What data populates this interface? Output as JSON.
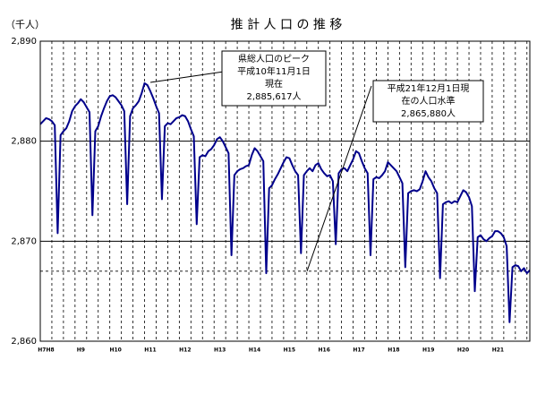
{
  "chart_data": {
    "type": "line",
    "title": "推 計 人 口 の 推 移",
    "y_unit": "（千人）",
    "categories": [
      null,
      null,
      "H7H8",
      null,
      null,
      null,
      null,
      null,
      null,
      null,
      null,
      null,
      null,
      null,
      "H9",
      null,
      null,
      null,
      null,
      null,
      null,
      null,
      null,
      null,
      null,
      null,
      "H10",
      null,
      null,
      null,
      null,
      null,
      null,
      null,
      null,
      null,
      null,
      null,
      "H11",
      null,
      null,
      null,
      null,
      null,
      null,
      null,
      null,
      null,
      null,
      null,
      "H12",
      null,
      null,
      null,
      null,
      null,
      null,
      null,
      null,
      null,
      null,
      null,
      "H13",
      null,
      null,
      null,
      null,
      null,
      null,
      null,
      null,
      null,
      null,
      null,
      "H14",
      null,
      null,
      null,
      null,
      null,
      null,
      null,
      null,
      null,
      null,
      null,
      "H15",
      null,
      null,
      null,
      null,
      null,
      null,
      null,
      null,
      null,
      null,
      null,
      "H16",
      null,
      null,
      null,
      null,
      null,
      null,
      null,
      null,
      null,
      null,
      null,
      "H17",
      null,
      null,
      null,
      null,
      null,
      null,
      null,
      null,
      null,
      null,
      null,
      "H18",
      null,
      null,
      null,
      null,
      null,
      null,
      null,
      null,
      null,
      null,
      null,
      "H19",
      null,
      null,
      null,
      null,
      null,
      null,
      null,
      null,
      null,
      null,
      null,
      "H20",
      null,
      null,
      null,
      null,
      null,
      null,
      null,
      null,
      null,
      null,
      null,
      "H21",
      null,
      null,
      null,
      null,
      null,
      null,
      null,
      null,
      null,
      null,
      null
    ],
    "series": [
      {
        "name": "推計人口",
        "color": "#00008b",
        "values": [
          2881.7,
          2882.0,
          2882.3,
          2882.2,
          2882.0,
          2881.6,
          2870.8,
          2880.6,
          2881.0,
          2881.3,
          2882.0,
          2883.0,
          2883.5,
          2883.8,
          2884.2,
          2883.9,
          2883.4,
          2882.9,
          2872.6,
          2881.0,
          2881.5,
          2882.5,
          2883.3,
          2884.0,
          2884.5,
          2884.6,
          2884.4,
          2884.0,
          2883.6,
          2883.0,
          2873.7,
          2882.5,
          2883.3,
          2883.6,
          2884.0,
          2884.8,
          2885.8,
          2885.6,
          2885.0,
          2884.3,
          2883.5,
          2882.8,
          2874.2,
          2881.5,
          2881.8,
          2881.7,
          2882.0,
          2882.3,
          2882.4,
          2882.6,
          2882.5,
          2882.0,
          2881.2,
          2880.5,
          2871.7,
          2878.4,
          2878.6,
          2878.5,
          2879.0,
          2879.2,
          2879.6,
          2880.2,
          2880.4,
          2880.0,
          2879.4,
          2878.8,
          2868.6,
          2876.6,
          2877.0,
          2877.2,
          2877.3,
          2877.5,
          2877.6,
          2878.6,
          2879.3,
          2879.0,
          2878.5,
          2878.0,
          2866.8,
          2875.3,
          2875.6,
          2876.2,
          2876.7,
          2877.3,
          2877.9,
          2878.4,
          2878.3,
          2877.6,
          2877.0,
          2876.6,
          2868.8,
          2876.6,
          2877.0,
          2877.3,
          2877.0,
          2877.6,
          2877.8,
          2877.2,
          2876.8,
          2876.5,
          2876.6,
          2876.0,
          2869.7,
          2876.8,
          2877.2,
          2877.3,
          2877.0,
          2877.6,
          2878.2,
          2879.0,
          2878.8,
          2878.0,
          2877.3,
          2876.8,
          2868.6,
          2876.2,
          2876.4,
          2876.3,
          2876.6,
          2877.0,
          2877.9,
          2877.6,
          2877.3,
          2877.0,
          2876.4,
          2875.8,
          2867.4,
          2874.8,
          2875.0,
          2875.1,
          2875.0,
          2875.2,
          2876.0,
          2877.0,
          2876.4,
          2876.0,
          2875.3,
          2874.8,
          2866.3,
          2873.7,
          2873.9,
          2874.0,
          2873.8,
          2874.0,
          2873.9,
          2874.5,
          2875.1,
          2874.9,
          2874.4,
          2873.5,
          2865.0,
          2870.4,
          2870.6,
          2870.2,
          2870.0,
          2870.3,
          2870.5,
          2871.0,
          2871.0,
          2870.8,
          2870.4,
          2869.5,
          2861.9,
          2867.4,
          2867.6,
          2867.5,
          2867.0,
          2867.3,
          2866.8,
          2867.1
        ]
      }
    ],
    "ylim": [
      2860,
      2890
    ],
    "yticks": [
      {
        "value": 2860,
        "label": "2,860"
      },
      {
        "value": 2870,
        "label": "2,870"
      },
      {
        "value": 2880,
        "label": "2,880"
      },
      {
        "value": 2890,
        "label": "2,890"
      }
    ],
    "grid": true,
    "ref_line": 2867,
    "annotations": [
      {
        "lines": [
          "県総人口のピーク",
          "平成10年11月1日",
          "現在",
          "2,885,617人"
        ]
      },
      {
        "lines": [
          "平成21年12月1日現",
          "在の人口水準",
          "2,865,880人"
        ]
      }
    ]
  }
}
